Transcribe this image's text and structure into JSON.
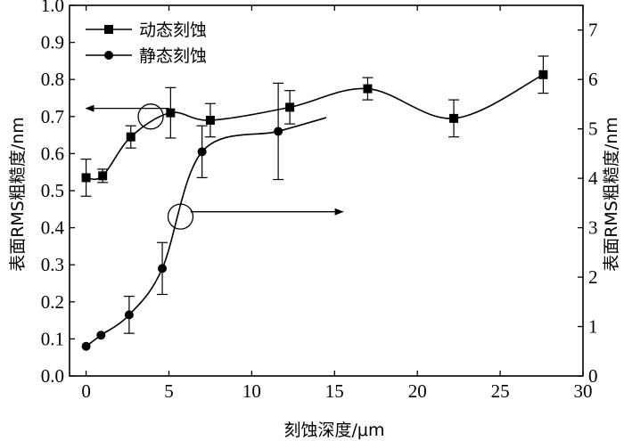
{
  "chart_data": {
    "type": "scatter",
    "xlabel": "刻蚀深度/μm",
    "ylabel_left": "表面RMS粗糙度/nm",
    "ylabel_right": "表面RMS粗糙度/nm",
    "xlim": [
      -1,
      30
    ],
    "ylim_left": [
      0,
      1.0
    ],
    "ylim_right": [
      0,
      7.5
    ],
    "x_ticks": [
      0,
      5,
      10,
      15,
      20,
      25,
      30
    ],
    "y_ticks_left": [
      "0.0",
      "0.1",
      "0.2",
      "0.3",
      "0.4",
      "0.5",
      "0.6",
      "0.7",
      "0.8",
      "0.9",
      "1.0"
    ],
    "y_ticks_right": [
      0,
      1,
      2,
      3,
      4,
      5,
      6,
      7
    ],
    "legend_position": "top-left",
    "series": [
      {
        "name": "动态刻蚀",
        "marker": "square",
        "axis": "left",
        "x": [
          0,
          1,
          2.7,
          5.1,
          7.5,
          12.3,
          17,
          22.2,
          27.6
        ],
        "y": [
          0.535,
          0.54,
          0.645,
          0.71,
          0.69,
          0.725,
          0.775,
          0.695,
          0.813
        ],
        "err": [
          0.05,
          0.018,
          0.03,
          0.068,
          0.045,
          0.045,
          0.03,
          0.05,
          0.05
        ]
      },
      {
        "name": "静态刻蚀",
        "marker": "circle",
        "axis": "left",
        "x": [
          0,
          0.9,
          2.6,
          4.6,
          7,
          11.6
        ],
        "y": [
          0.08,
          0.11,
          0.165,
          0.29,
          0.605,
          0.66
        ],
        "err": [
          0,
          0,
          0.05,
          0.07,
          0.07,
          0.13
        ]
      }
    ],
    "annotations": [
      {
        "type": "arrow",
        "direction": "left",
        "from": [
          5,
          0.722
        ],
        "to": [
          0,
          0.722
        ]
      },
      {
        "type": "ellipse",
        "center": [
          3.9,
          0.7
        ]
      },
      {
        "type": "ellipse",
        "center": [
          5.7,
          0.43
        ]
      },
      {
        "type": "arrow",
        "direction": "right",
        "from": [
          6.3,
          0.443
        ],
        "to": [
          15.5,
          0.443
        ]
      }
    ]
  }
}
